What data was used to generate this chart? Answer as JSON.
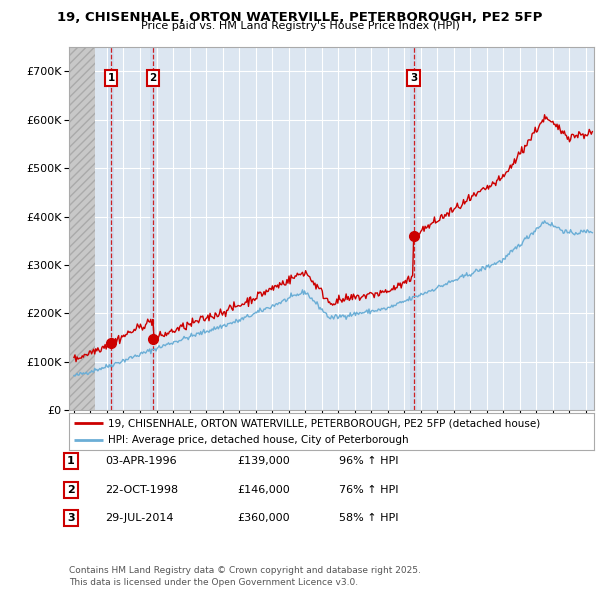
{
  "title_line1": "19, CHISENHALE, ORTON WATERVILLE, PETERBOROUGH, PE2 5FP",
  "title_line2": "Price paid vs. HM Land Registry's House Price Index (HPI)",
  "ylim": [
    0,
    750000
  ],
  "yticks": [
    0,
    100000,
    200000,
    300000,
    400000,
    500000,
    600000,
    700000
  ],
  "ytick_labels": [
    "£0",
    "£100K",
    "£200K",
    "£300K",
    "£400K",
    "£500K",
    "£600K",
    "£700K"
  ],
  "xlim_start": 1993.7,
  "xlim_end": 2025.5,
  "hpi_color": "#6baed6",
  "sale_color": "#cc0000",
  "bg_color": "#dce6f1",
  "hatch_end_year": 1995.3,
  "sales": [
    {
      "label": 1,
      "date": 1996.25,
      "price": 139000
    },
    {
      "label": 2,
      "date": 1998.8,
      "price": 146000
    },
    {
      "label": 3,
      "date": 2014.57,
      "price": 360000
    }
  ],
  "legend_sale_text": "19, CHISENHALE, ORTON WATERVILLE, PETERBOROUGH, PE2 5FP (detached house)",
  "legend_hpi_text": "HPI: Average price, detached house, City of Peterborough",
  "table_rows": [
    {
      "num": 1,
      "date": "03-APR-1996",
      "price": "£139,000",
      "change": "96% ↑ HPI"
    },
    {
      "num": 2,
      "date": "22-OCT-1998",
      "price": "£146,000",
      "change": "76% ↑ HPI"
    },
    {
      "num": 3,
      "date": "29-JUL-2014",
      "price": "£360,000",
      "change": "58% ↑ HPI"
    }
  ],
  "footer_text": "Contains HM Land Registry data © Crown copyright and database right 2025.\nThis data is licensed under the Open Government Licence v3.0.",
  "grid_color": "#ffffff"
}
